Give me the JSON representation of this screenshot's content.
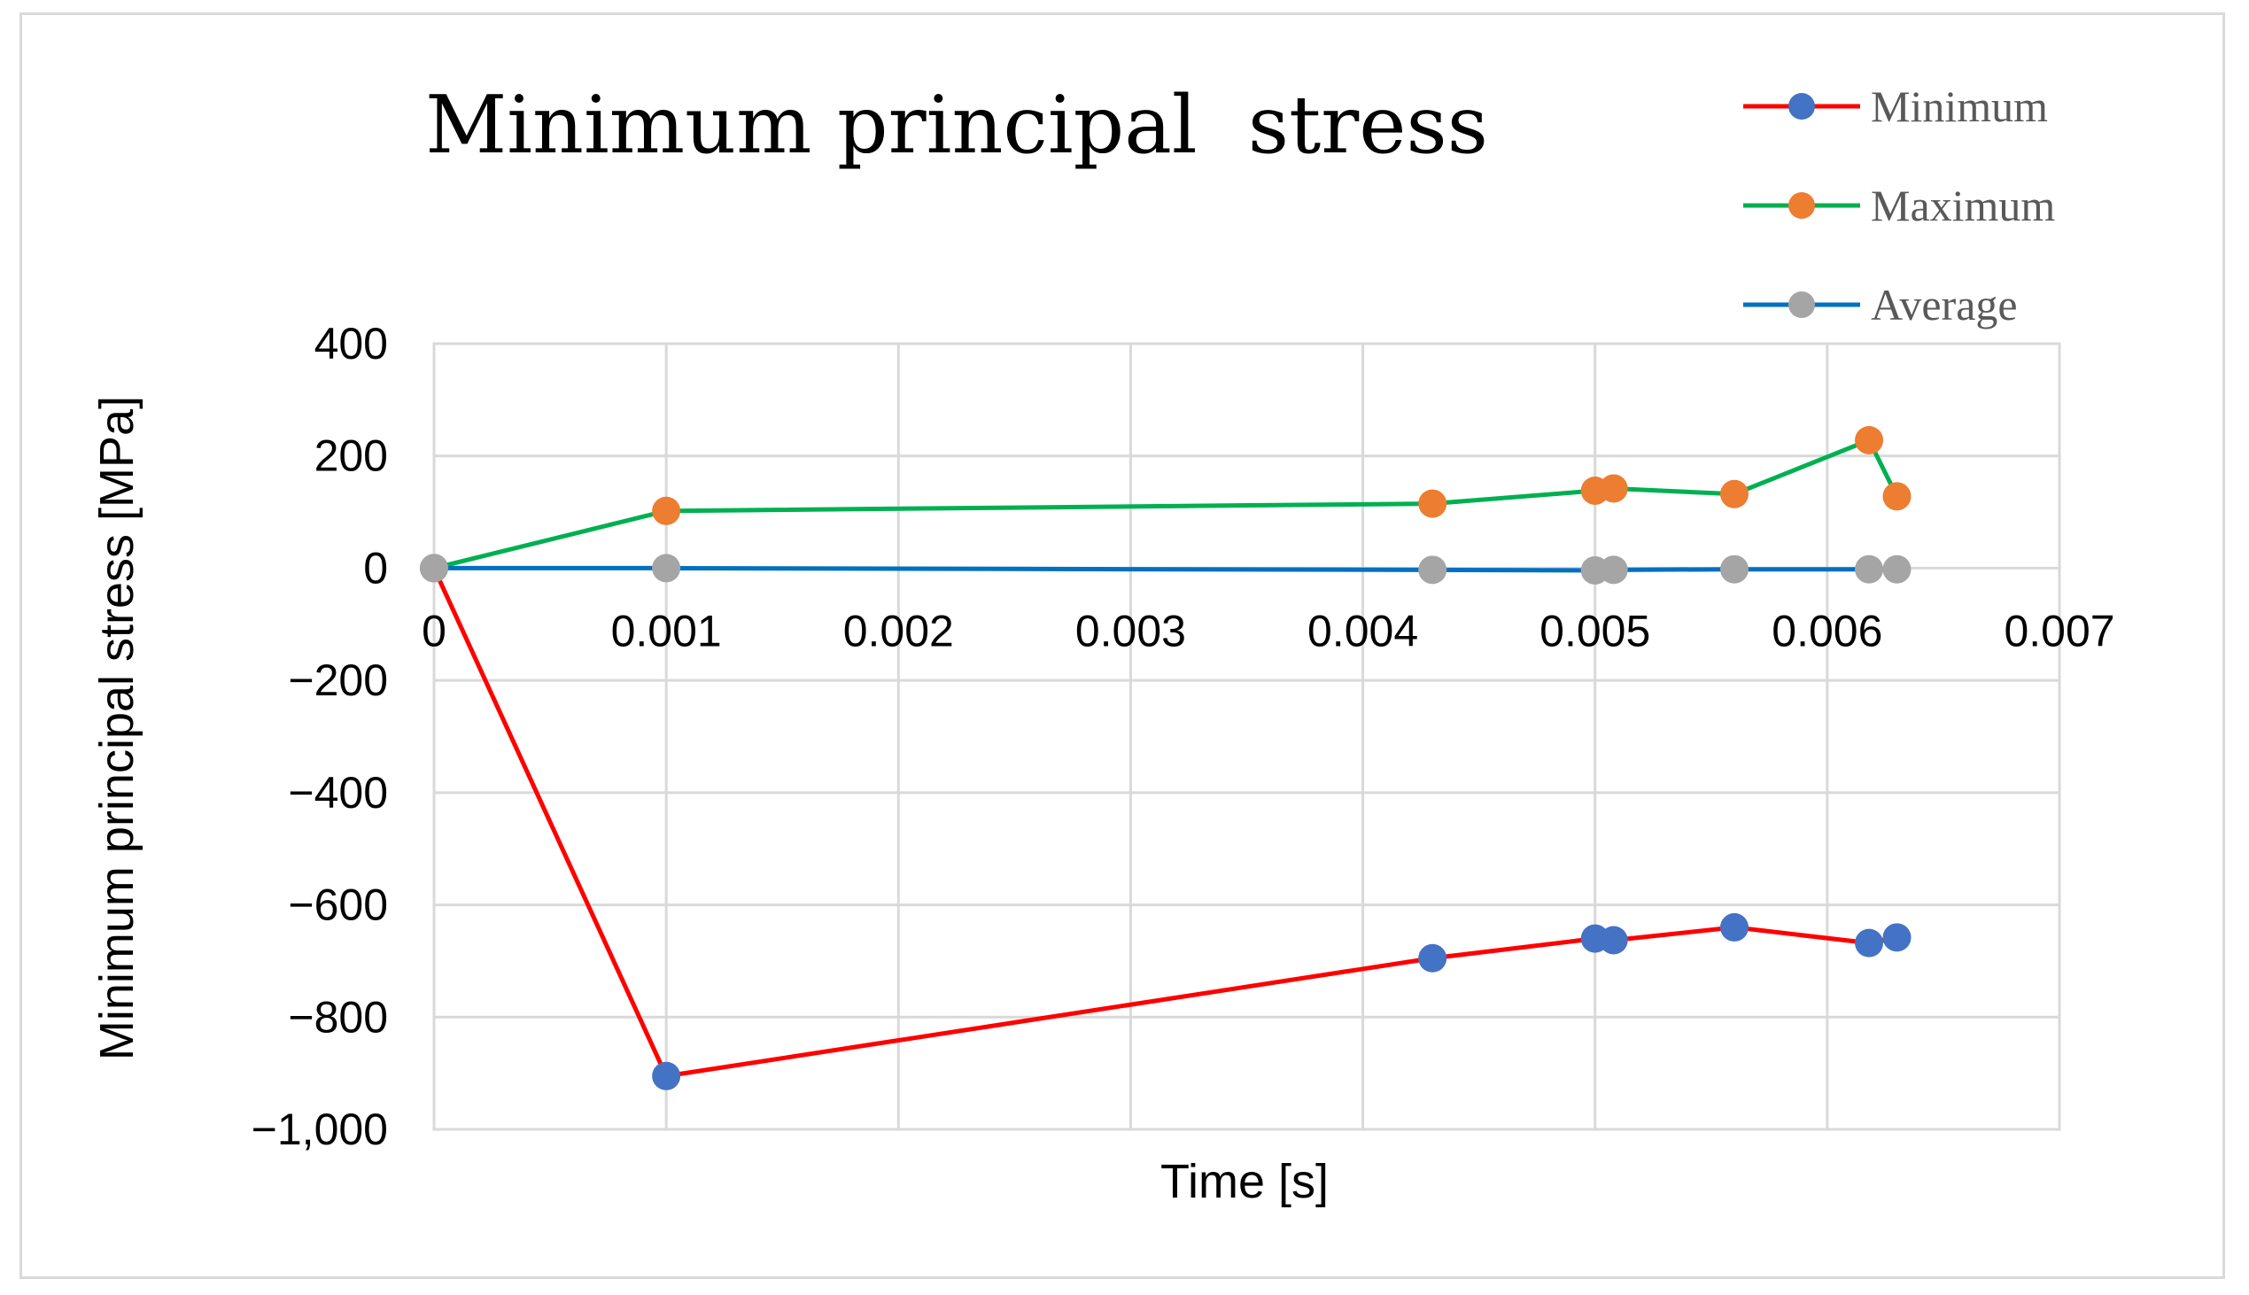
{
  "chart_data": {
    "type": "line",
    "title": "Minimum principal  stress",
    "xlabel": "Time [s]",
    "ylabel": "Minimum principal stress [MPa]",
    "xlim": [
      0,
      0.007
    ],
    "ylim": [
      -1000,
      400
    ],
    "x_ticks": [
      0,
      0.001,
      0.002,
      0.003,
      0.004,
      0.005,
      0.006,
      0.007
    ],
    "x_tick_labels": [
      "0",
      "0.001",
      "0.002",
      "0.003",
      "0.004",
      "0.005",
      "0.006",
      "0.007"
    ],
    "y_ticks": [
      400,
      200,
      0,
      -200,
      -400,
      -600,
      -800,
      -1000
    ],
    "y_tick_labels": [
      "400",
      "200",
      "0",
      "−200",
      "−400",
      "−600",
      "−800",
      "−1,000"
    ],
    "grid": true,
    "legend_position": "top-right",
    "x": [
      0,
      0.001,
      0.0043,
      0.005,
      0.00508,
      0.0056,
      0.00618,
      0.0063
    ],
    "series": [
      {
        "name": "Minimum",
        "line_color": "#ff0000",
        "marker_color": "#4472c4",
        "values": [
          0,
          -905,
          -695,
          -660,
          -663,
          -640,
          -668,
          -658
        ]
      },
      {
        "name": "Maximum",
        "line_color": "#00b050",
        "marker_color": "#ed7d31",
        "values": [
          0,
          102,
          115,
          138,
          142,
          132,
          228,
          128
        ]
      },
      {
        "name": "Average",
        "line_color": "#0070c0",
        "marker_color": "#a5a5a5",
        "values": [
          0,
          0,
          -3,
          -4,
          -3,
          -2,
          -2,
          -2
        ]
      }
    ]
  }
}
